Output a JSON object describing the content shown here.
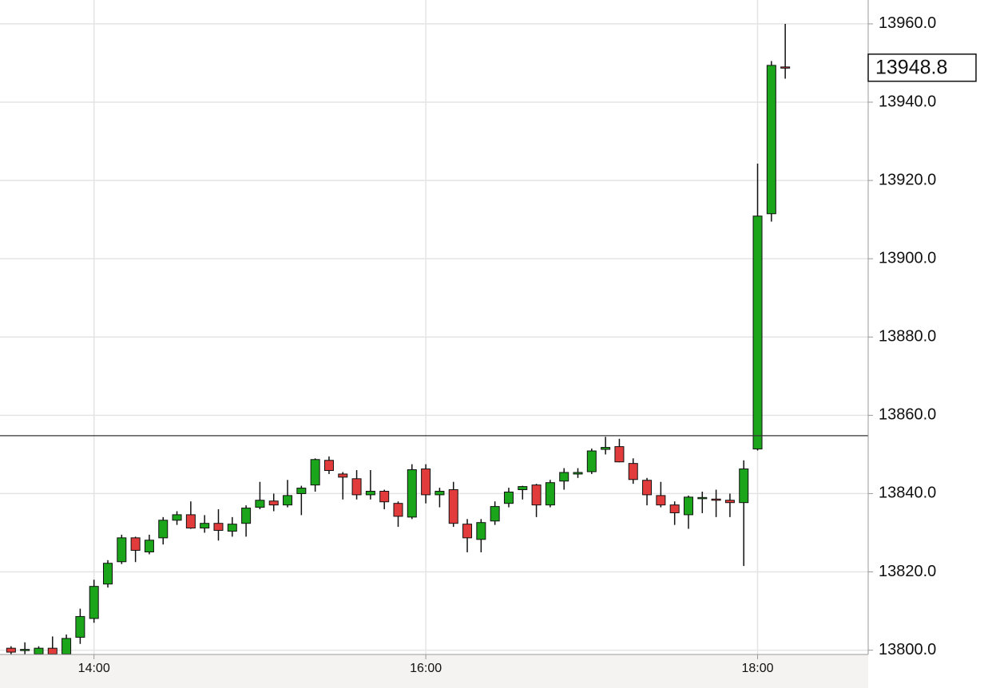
{
  "chart_data": {
    "type": "candlestick",
    "x": [
      "13:30",
      "13:35",
      "13:40",
      "13:45",
      "13:50",
      "13:55",
      "14:00",
      "14:05",
      "14:10",
      "14:15",
      "14:20",
      "14:25",
      "14:30",
      "14:35",
      "14:40",
      "14:45",
      "14:50",
      "14:55",
      "15:00",
      "15:05",
      "15:10",
      "15:15",
      "15:20",
      "15:25",
      "15:30",
      "15:35",
      "15:40",
      "15:45",
      "15:50",
      "15:55",
      "16:00",
      "16:05",
      "16:10",
      "16:15",
      "16:20",
      "16:25",
      "16:30",
      "16:35",
      "16:40",
      "16:45",
      "16:50",
      "16:55",
      "17:00",
      "17:05",
      "17:10",
      "17:15",
      "17:20",
      "17:25",
      "17:30",
      "17:35",
      "17:40",
      "17:45",
      "17:50",
      "17:55",
      "18:00",
      "18:05",
      "18:10"
    ],
    "open": [
      13800.5,
      13800,
      13799,
      13800.5,
      13799,
      13803.3,
      13808.1,
      13816.9,
      13822.6,
      13828.7,
      13825.1,
      13828.7,
      13833.2,
      13834.6,
      13831.2,
      13832.4,
      13830.4,
      13832.4,
      13836.5,
      13838.1,
      13837.1,
      13840,
      13842.2,
      13848.5,
      13845,
      13843.8,
      13839.7,
      13840.6,
      13837.5,
      13834,
      13846.3,
      13839.7,
      13841,
      13832.2,
      13828.3,
      13833,
      13837.5,
      13841,
      13842.2,
      13837.1,
      13843.2,
      13845,
      13845.6,
      13851.3,
      13852,
      13847.7,
      13843.4,
      13839.5,
      13837.1,
      13834.6,
      13838.8,
      13838.6,
      13838.3,
      13837.7,
      13851.4,
      13911.5,
      13949
    ],
    "high": [
      13801,
      13802,
      13801,
      13803.5,
      13804,
      13810.6,
      13818,
      13823,
      13829.5,
      13829,
      13829.5,
      13834,
      13835.5,
      13838,
      13834.5,
      13836,
      13834,
      13837,
      13843,
      13840,
      13843.5,
      13842,
      13849,
      13849.5,
      13845.5,
      13846,
      13846,
      13841,
      13838,
      13847.5,
      13847.5,
      13841.5,
      13843,
      13833.5,
      13833.5,
      13838,
      13841.5,
      13842,
      13842.5,
      13843.5,
      13846.5,
      13846.5,
      13851.5,
      13854.5,
      13854,
      13849,
      13844,
      13843,
      13838,
      13839.5,
      13840.5,
      13841,
      13840,
      13848.5,
      13924.3,
      13950.5,
      13960
    ],
    "low": [
      13799,
      13799,
      13799,
      13799,
      13799,
      13801.6,
      13807,
      13816,
      13822,
      13822.5,
      13824.5,
      13827,
      13832,
      13831,
      13830,
      13828,
      13829,
      13829,
      13836,
      13835.5,
      13836.5,
      13834.5,
      13840.5,
      13845,
      13838.5,
      13838.5,
      13838.5,
      13836,
      13831.5,
      13833.5,
      13837.5,
      13836.5,
      13831.5,
      13825,
      13825,
      13832,
      13836.5,
      13838.5,
      13834,
      13836.5,
      13841,
      13844,
      13845,
      13850,
      13848,
      13842.5,
      13837,
      13836.5,
      13832,
      13831,
      13835,
      13834,
      13834,
      13821.5,
      13851,
      13909.5,
      13946
    ],
    "close": [
      13799.5,
      13800.2,
      13800.5,
      13799,
      13803,
      13808.6,
      13816.3,
      13822.2,
      13828.7,
      13825.5,
      13828.1,
      13833.2,
      13834.6,
      13831.2,
      13832.4,
      13830.6,
      13832.2,
      13836.3,
      13838.3,
      13837.1,
      13839.5,
      13841.4,
      13848.7,
      13845.9,
      13844.2,
      13839.7,
      13840.6,
      13837.9,
      13834.2,
      13846.1,
      13839.7,
      13840.6,
      13832.4,
      13828.7,
      13832.6,
      13836.7,
      13840.4,
      13841.8,
      13837.1,
      13842.8,
      13845.4,
      13845.4,
      13850.9,
      13851.8,
      13848.1,
      13843.6,
      13839.7,
      13837.1,
      13835.1,
      13839.1,
      13839,
      13838.4,
      13837.7,
      13846.3,
      13910.9,
      13949.4,
      13948.8
    ],
    "up_color": "#1aa51a",
    "down_color": "#e23b3b",
    "xlim": [
      "13:26",
      "18:40"
    ],
    "xticks": [
      "14:00",
      "16:00",
      "18:00"
    ],
    "ylim": [
      13798.9,
      13966.1
    ],
    "yticks": [
      {
        "value": 13800,
        "label": "13800.0"
      },
      {
        "value": 13820,
        "label": "13820.0"
      },
      {
        "value": 13840,
        "label": "13840.0"
      },
      {
        "value": 13860,
        "label": "13860.0"
      },
      {
        "value": 13880,
        "label": "13880.0"
      },
      {
        "value": 13900,
        "label": "13900.0"
      },
      {
        "value": 13920,
        "label": "13920.0"
      },
      {
        "value": 13940,
        "label": "13940.0"
      },
      {
        "value": 13960,
        "label": "13960.0"
      }
    ],
    "grid": true,
    "reference_line": 13854.8,
    "last_price": 13948.8
  }
}
